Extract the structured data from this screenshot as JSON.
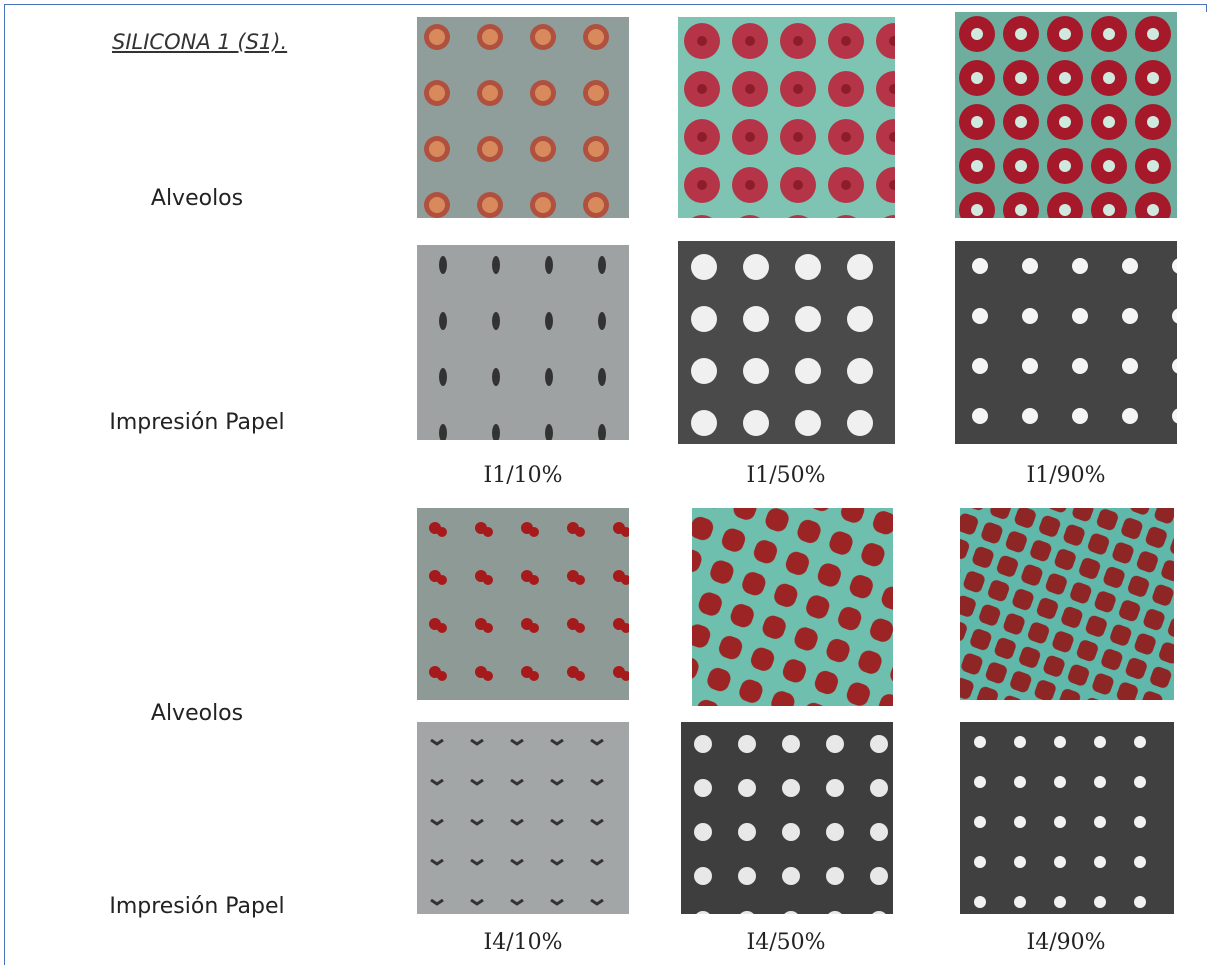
{
  "title": "SILICONA 1 (S1).",
  "groups": [
    {
      "rows": [
        "Alveolos",
        "Impresión Papel"
      ],
      "captions": [
        "I1/10%",
        "I1/50%",
        "I1/90%"
      ]
    },
    {
      "rows": [
        "Alveolos",
        "Impresión Papel"
      ],
      "captions": [
        "I4/10%",
        "I4/50%",
        "I4/90%"
      ]
    }
  ]
}
